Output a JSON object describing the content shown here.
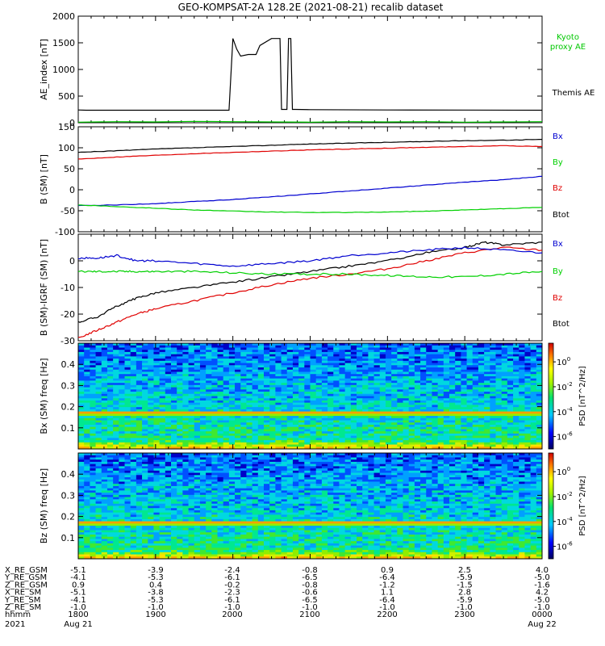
{
  "title": "GEO-KOMPSAT-2A 128.2E (2021-08-21) recalib dataset",
  "chart_data": [
    {
      "type": "line",
      "panel": "ae",
      "ylabel": "AE_index [nT]",
      "xlim": [
        18.0,
        24.0
      ],
      "ylim": [
        0,
        2000
      ],
      "yticks": [
        0,
        500,
        1000,
        1500,
        2000
      ],
      "legend": [
        "Kyoto proxy AE",
        "Themis AE"
      ],
      "series": [
        {
          "name": "Themis AE",
          "color": "#000000",
          "x": [
            18.0,
            18.1,
            19.95,
            20.0,
            20.05,
            20.1,
            20.2,
            20.3,
            20.35,
            20.5,
            20.55,
            20.61,
            20.63,
            20.7,
            20.72,
            20.75,
            20.77,
            20.81,
            21.0,
            22.0,
            23.0,
            24.0
          ],
          "y": [
            240,
            235,
            235,
            1580,
            1380,
            1250,
            1280,
            1280,
            1450,
            1580,
            1580,
            1580,
            250,
            250,
            1580,
            1580,
            250,
            250,
            245,
            240,
            238,
            235
          ]
        },
        {
          "name": "Kyoto proxy AE",
          "color": "#00c800",
          "x": [
            18.0,
            18.5,
            19.0,
            19.5,
            20.0,
            20.5,
            21.0,
            21.5,
            22.0,
            22.5,
            23.0,
            23.5,
            24.0
          ],
          "y": [
            10,
            20,
            15,
            25,
            20,
            15,
            10,
            20,
            15,
            20,
            10,
            15,
            20
          ]
        }
      ]
    },
    {
      "type": "line",
      "panel": "b_sm",
      "ylabel": "B (SM) [nT]",
      "xlim": [
        18.0,
        24.0
      ],
      "ylim": [
        -100,
        150
      ],
      "yticks": [
        -100,
        -50,
        0,
        50,
        100,
        150
      ],
      "legend": [
        "Bx",
        "By",
        "Bz",
        "Btot"
      ],
      "series": [
        {
          "name": "Btot",
          "color": "#000000",
          "x": [
            18.0,
            18.5,
            19.0,
            19.5,
            20.0,
            20.5,
            21.0,
            21.5,
            22.0,
            22.5,
            23.0,
            23.5,
            24.0
          ],
          "y": [
            89,
            93,
            97,
            100,
            103,
            106,
            109,
            111,
            113,
            115,
            117,
            118,
            120
          ]
        },
        {
          "name": "Bz",
          "color": "#e00000",
          "x": [
            18.0,
            18.5,
            19.0,
            19.5,
            20.0,
            20.5,
            21.0,
            21.5,
            22.0,
            22.5,
            23.0,
            23.5,
            24.0
          ],
          "y": [
            73,
            78,
            82,
            86,
            89,
            92,
            95,
            97,
            99,
            101,
            103,
            105,
            103
          ]
        },
        {
          "name": "Bx",
          "color": "#0000d0",
          "x": [
            18.0,
            18.5,
            19.0,
            19.5,
            20.0,
            20.5,
            21.0,
            21.5,
            22.0,
            22.5,
            23.0,
            23.5,
            24.0
          ],
          "y": [
            -38,
            -36,
            -33,
            -28,
            -23,
            -17,
            -10,
            -3,
            4,
            11,
            18,
            24,
            32
          ]
        },
        {
          "name": "By",
          "color": "#00d000",
          "x": [
            18.0,
            18.5,
            19.0,
            19.5,
            20.0,
            20.5,
            21.0,
            21.5,
            22.0,
            22.5,
            23.0,
            23.5,
            24.0
          ],
          "y": [
            -36,
            -40,
            -44,
            -48,
            -51,
            -53,
            -54,
            -54,
            -53,
            -51,
            -48,
            -45,
            -42
          ]
        }
      ]
    },
    {
      "type": "line",
      "panel": "db",
      "ylabel": "B (SM)-IGRF (SM) [nT]",
      "xlim": [
        18.0,
        24.0
      ],
      "ylim": [
        -30,
        10
      ],
      "yticks": [
        -30,
        -20,
        -10,
        0
      ],
      "legend": [
        "Bx",
        "By",
        "Bz",
        "Btot"
      ],
      "series": [
        {
          "name": "Btot",
          "color": "#000000",
          "x": [
            18.0,
            18.25,
            18.5,
            18.75,
            19.0,
            19.5,
            20.0,
            20.5,
            21.0,
            21.5,
            22.0,
            22.5,
            23.0,
            23.25,
            23.5,
            24.0
          ],
          "y": [
            -23,
            -21,
            -17,
            -14,
            -12,
            -10,
            -8,
            -6,
            -4,
            -2,
            0,
            3,
            5,
            7,
            6,
            7
          ]
        },
        {
          "name": "Bz",
          "color": "#e00000",
          "x": [
            18.0,
            18.25,
            18.5,
            18.75,
            19.0,
            19.5,
            20.0,
            20.5,
            21.0,
            21.5,
            22.0,
            22.5,
            23.0,
            23.5,
            24.0
          ],
          "y": [
            -29,
            -26,
            -23,
            -20,
            -18,
            -15,
            -12,
            -9,
            -6.5,
            -5,
            -3,
            0,
            3,
            5,
            4
          ]
        },
        {
          "name": "Bx",
          "color": "#0000d0",
          "x": [
            18.0,
            18.25,
            18.5,
            18.75,
            19.0,
            19.5,
            20.0,
            20.5,
            21.0,
            21.5,
            22.0,
            22.5,
            23.0,
            23.5,
            24.0
          ],
          "y": [
            1,
            1,
            2,
            0,
            0,
            -1,
            -2,
            -1,
            0,
            2,
            3,
            4,
            5,
            4,
            3
          ]
        },
        {
          "name": "By",
          "color": "#00d000",
          "x": [
            18.0,
            18.25,
            18.5,
            18.75,
            19.0,
            19.5,
            20.0,
            20.5,
            21.0,
            21.5,
            22.0,
            22.5,
            23.0,
            23.5,
            24.0
          ],
          "y": [
            -4,
            -4,
            -4,
            -4,
            -4,
            -4,
            -4.5,
            -5,
            -5,
            -5,
            -5.5,
            -6,
            -6,
            -5,
            -4
          ]
        }
      ]
    },
    {
      "type": "heatmap",
      "panel": "spec_bx",
      "ylabel": "Bx (SM) freq [Hz]",
      "xlim": [
        18.0,
        24.0
      ],
      "ylim": [
        0,
        0.5
      ],
      "yticks": [
        0.1,
        0.2,
        0.3,
        0.4
      ],
      "colorbar_label": "PSD [nT^2/Hz]",
      "colorbar_ticks": [
        "10^0",
        "10^-2",
        "10^-4",
        "10^-6"
      ],
      "colorbar_exponents": [
        0,
        -2,
        -4,
        -6
      ],
      "colorbar_range_log10": [
        -7,
        1.5
      ],
      "feature_line_hz": 0.168
    },
    {
      "type": "heatmap",
      "panel": "spec_bz",
      "ylabel": "Bz (SM) freq [Hz]",
      "xlim": [
        18.0,
        24.0
      ],
      "ylim": [
        0,
        0.5
      ],
      "yticks": [
        0.1,
        0.2,
        0.3,
        0.4
      ],
      "colorbar_label": "PSD [nT^2/Hz]",
      "colorbar_ticks": [
        "10^0",
        "10^-2",
        "10^-4",
        "10^-6"
      ],
      "colorbar_exponents": [
        0,
        -2,
        -4,
        -6
      ],
      "colorbar_range_log10": [
        -7,
        1.5
      ],
      "feature_line_hz": 0.168
    }
  ],
  "orbit_table": {
    "rows": [
      {
        "label": "X_RE_GSM",
        "values": [
          "-5.1",
          "-3.9",
          "-2.4",
          "-0.8",
          "0.9",
          "2.5",
          "4.0"
        ]
      },
      {
        "label": "Y_RE_GSM",
        "values": [
          "-4.1",
          "-5.3",
          "-6.1",
          "-6.5",
          "-6.4",
          "-5.9",
          "-5.0"
        ]
      },
      {
        "label": "Z_RE_GSM",
        "values": [
          "0.9",
          "0.4",
          "-0.2",
          "-0.8",
          "-1.2",
          "-1.5",
          "-1.6"
        ]
      },
      {
        "label": "X_RE_SM",
        "values": [
          "-5.1",
          "-3.8",
          "-2.3",
          "-0.6",
          "1.1",
          "2.8",
          "4.2"
        ]
      },
      {
        "label": "Y_RE_SM",
        "values": [
          "-4.1",
          "-5.3",
          "-6.1",
          "-6.5",
          "-6.4",
          "-5.9",
          "-5.0"
        ]
      },
      {
        "label": "Z_RE_SM",
        "values": [
          "-1.0",
          "-1.0",
          "-1.0",
          "-1.0",
          "-1.0",
          "-1.0",
          "-1.0"
        ]
      },
      {
        "label": "hhmm",
        "values": [
          "1800",
          "1900",
          "2000",
          "2100",
          "2200",
          "2300",
          "0000"
        ]
      }
    ],
    "year_label": "2021",
    "date_start": "Aug 21",
    "date_end": "Aug 22"
  }
}
